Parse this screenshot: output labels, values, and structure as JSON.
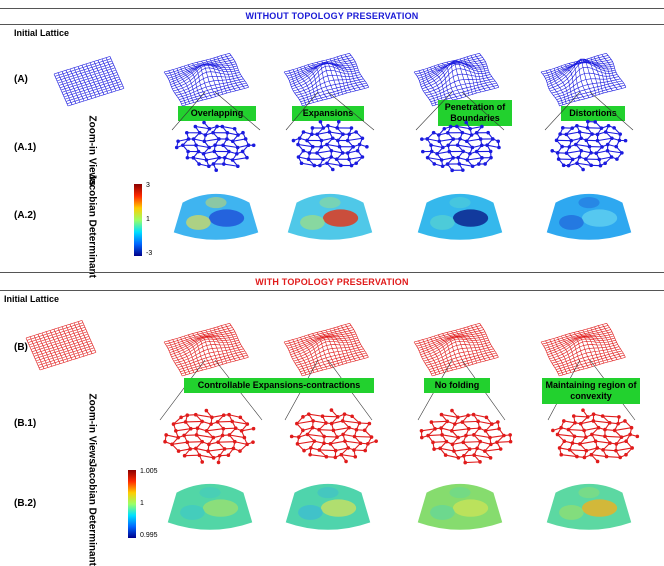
{
  "top": {
    "title": "WITHOUT TOPOLOGY PRESERVATION",
    "title_color": "#1a1ad6",
    "initial_lattice": "Initial Lattice",
    "row_a": "(A)",
    "row_a1": "(A.1)",
    "row_a2": "(A.2)",
    "zoom_label": "Zoom-in Views",
    "jacobian_label": "Jacobian Determinant",
    "tags": [
      "Overlapping",
      "Expansions",
      "Penetration of Boundaries",
      "Distortions"
    ],
    "colorbar_ticks": [
      "3",
      "1",
      "-3"
    ],
    "lattice_color": "#1a1adf"
  },
  "bottom": {
    "title": "WITH TOPOLOGY PRESERVATION",
    "title_color": "#e01b1b",
    "initial_lattice": "Initial Lattice",
    "row_b": "(B)",
    "row_b1": "(B.1)",
    "row_b2": "(B.2)",
    "zoom_label": "Zoom-in Views",
    "jacobian_label": "Jacobian Determinant",
    "tags": [
      "Controllable Expansions-contractions",
      "No folding",
      "Maintaining region of convexity"
    ],
    "colorbar_ticks": [
      "1.005",
      "1",
      "0.995"
    ],
    "lattice_color": "#e01b1b"
  }
}
